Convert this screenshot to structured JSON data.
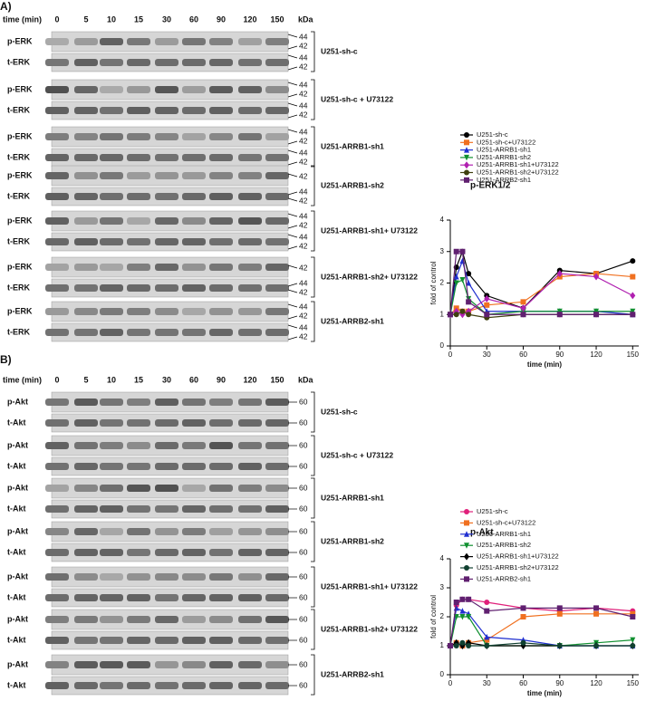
{
  "panels": [
    {
      "label": "A)",
      "time_label": "time (min)",
      "times": [
        "0",
        "5",
        "10",
        "15",
        "30",
        "60",
        "90",
        "120",
        "150"
      ],
      "unit": "kDa",
      "groups": [
        {
          "name": "U251-sh-c",
          "rows": [
            "p-ERK",
            "t-ERK"
          ],
          "markers": [
            "44",
            "42",
            "44",
            "42"
          ]
        },
        {
          "name": "U251-sh-c + U73122",
          "rows": [
            "p-ERK",
            "t-ERK"
          ],
          "markers": [
            "44",
            "42",
            "44",
            "42"
          ]
        },
        {
          "name": "U251-ARRB1-sh1",
          "rows": [
            "p-ERK",
            "t-ERK"
          ],
          "markers": [
            "44",
            "42",
            "44",
            "42"
          ]
        },
        {
          "name": "U251-ARRB1-sh2",
          "rows": [
            "p-ERK",
            "t-ERK"
          ],
          "markers": [
            "42",
            "44",
            "42"
          ]
        },
        {
          "name": "U251-ARRB1-sh1+ U73122",
          "rows": [
            "p-ERK",
            "t-ERK"
          ],
          "markers": [
            "44",
            "42",
            "44",
            "42"
          ]
        },
        {
          "name": "U251-ARRB1-sh2+ U73122",
          "rows": [
            "p-ERK",
            "t-ERK"
          ],
          "markers": [
            "42",
            "44",
            "42"
          ]
        },
        {
          "name": "U251-ARRB2-sh1",
          "rows": [
            "p-ERK",
            "t-ERK"
          ],
          "markers": [
            "44",
            "42",
            "44",
            "42"
          ]
        }
      ]
    },
    {
      "label": "B)",
      "time_label": "time (min)",
      "times": [
        "0",
        "5",
        "10",
        "15",
        "30",
        "60",
        "90",
        "120",
        "150"
      ],
      "unit": "kDa",
      "groups": [
        {
          "name": "U251-sh-c",
          "rows": [
            "p-Akt",
            "t-Akt"
          ],
          "markers": [
            "60",
            "60"
          ]
        },
        {
          "name": "U251-sh-c + U73122",
          "rows": [
            "p-Akt",
            "t-Akt"
          ],
          "markers": [
            "60",
            "60"
          ]
        },
        {
          "name": "U251-ARRB1-sh1",
          "rows": [
            "p-Akt",
            "t-Akt"
          ],
          "markers": [
            "60",
            "60"
          ]
        },
        {
          "name": "U251-ARRB1-sh2",
          "rows": [
            "p-Akt",
            "t-Akt"
          ],
          "markers": [
            "60",
            "60"
          ]
        },
        {
          "name": "U251-ARRB1-sh1+ U73122",
          "rows": [
            "p-Akt",
            "t-Akt"
          ],
          "markers": [
            "60",
            "60"
          ]
        },
        {
          "name": "U251-ARRB1-sh2+ U73122",
          "rows": [
            "p-Akt",
            "t-Akt"
          ],
          "markers": [
            "60",
            "60"
          ]
        },
        {
          "name": "U251-ARRB2-sh1",
          "rows": [
            "p-Akt",
            "t-Akt"
          ],
          "markers": [
            "60",
            "60"
          ]
        }
      ]
    }
  ],
  "chart_data": [
    {
      "type": "line",
      "title": "p-ERK1/2",
      "x_label": "time (min)",
      "y_label": "fold of control",
      "x": [
        0,
        5,
        10,
        15,
        30,
        60,
        90,
        120,
        150
      ],
      "xlim": [
        0,
        155
      ],
      "ylim": [
        0,
        4
      ],
      "xticks": [
        0,
        30,
        60,
        90,
        120,
        150
      ],
      "yticks": [
        0,
        1,
        2,
        3,
        4
      ],
      "series": [
        {
          "name": "U251-sh-c",
          "color": "#000000",
          "marker": "circle",
          "values": [
            1,
            2.5,
            3,
            2.3,
            1.6,
            1.2,
            2.4,
            2.3,
            2.7
          ]
        },
        {
          "name": "U251-sh-c+U73122",
          "color": "#f07020",
          "marker": "square",
          "values": [
            1,
            1.2,
            1.1,
            1.1,
            1.3,
            1.4,
            2.2,
            2.3,
            2.2
          ]
        },
        {
          "name": "U251-ARRB1-sh1",
          "color": "#2030d0",
          "marker": "triangle",
          "values": [
            1,
            2.2,
            2.7,
            2.0,
            1.1,
            1.1,
            1.1,
            1.1,
            1.0
          ]
        },
        {
          "name": "U251-ARRB1-sh2",
          "color": "#109030",
          "marker": "triangle-down",
          "values": [
            1,
            2.0,
            2.1,
            1.5,
            1.0,
            1.1,
            1.1,
            1.1,
            1.1
          ]
        },
        {
          "name": "U251-ARRB1-sh1+U73122",
          "color": "#b020b0",
          "marker": "diamond",
          "values": [
            1,
            1.1,
            1.0,
            1.1,
            1.5,
            1.2,
            2.3,
            2.2,
            1.6
          ]
        },
        {
          "name": "U251-ARRB1-sh2+U73122",
          "color": "#404010",
          "marker": "circle",
          "values": [
            1,
            1.0,
            1.1,
            1.0,
            0.9,
            1.0,
            1.0,
            1.0,
            1.0
          ]
        },
        {
          "name": "U251-ARRB2-sh1",
          "color": "#602070",
          "marker": "square",
          "values": [
            1,
            3.0,
            3.0,
            1.4,
            1.0,
            1.0,
            1.0,
            1.0,
            1.0
          ]
        }
      ]
    },
    {
      "type": "line",
      "title": "p-Akt",
      "x_label": "time (min)",
      "y_label": "fold of control",
      "x": [
        0,
        5,
        10,
        15,
        30,
        60,
        90,
        120,
        150
      ],
      "xlim": [
        0,
        155
      ],
      "ylim": [
        0,
        4
      ],
      "xticks": [
        0,
        30,
        60,
        90,
        120,
        150
      ],
      "yticks": [
        0,
        1,
        2,
        3,
        4
      ],
      "series": [
        {
          "name": "U251-sh-c",
          "color": "#e0207a",
          "marker": "circle",
          "values": [
            1,
            2.4,
            2.6,
            2.6,
            2.5,
            2.3,
            2.2,
            2.3,
            2.2
          ]
        },
        {
          "name": "U251-sh-c+U73122",
          "color": "#f07020",
          "marker": "square",
          "values": [
            1,
            1.1,
            1.0,
            1.1,
            1.2,
            2.0,
            2.1,
            2.1,
            2.1
          ]
        },
        {
          "name": "U251-ARRB1-sh1",
          "color": "#2030d0",
          "marker": "triangle",
          "values": [
            1,
            2.3,
            2.2,
            2.1,
            1.3,
            1.2,
            1.0,
            1.0,
            1.0
          ]
        },
        {
          "name": "U251-ARRB1-sh2",
          "color": "#109030",
          "marker": "triangle-down",
          "values": [
            1,
            2.0,
            2.0,
            2.0,
            1.0,
            1.0,
            1.0,
            1.1,
            1.2
          ]
        },
        {
          "name": "U251-ARRB1-sh1+U73122",
          "color": "#000000",
          "marker": "diamond",
          "values": [
            1,
            1.1,
            1.0,
            1.1,
            1.0,
            1.0,
            1.0,
            1.0,
            1.0
          ]
        },
        {
          "name": "U251-ARRB1-sh2+U73122",
          "color": "#104030",
          "marker": "circle",
          "values": [
            1,
            1.0,
            1.1,
            1.0,
            1.0,
            1.1,
            1.0,
            1.0,
            1.0
          ]
        },
        {
          "name": "U251-ARRB2-sh1",
          "color": "#602070",
          "marker": "square",
          "values": [
            1,
            2.5,
            2.6,
            2.6,
            2.2,
            2.3,
            2.3,
            2.3,
            2.0
          ]
        }
      ]
    }
  ]
}
